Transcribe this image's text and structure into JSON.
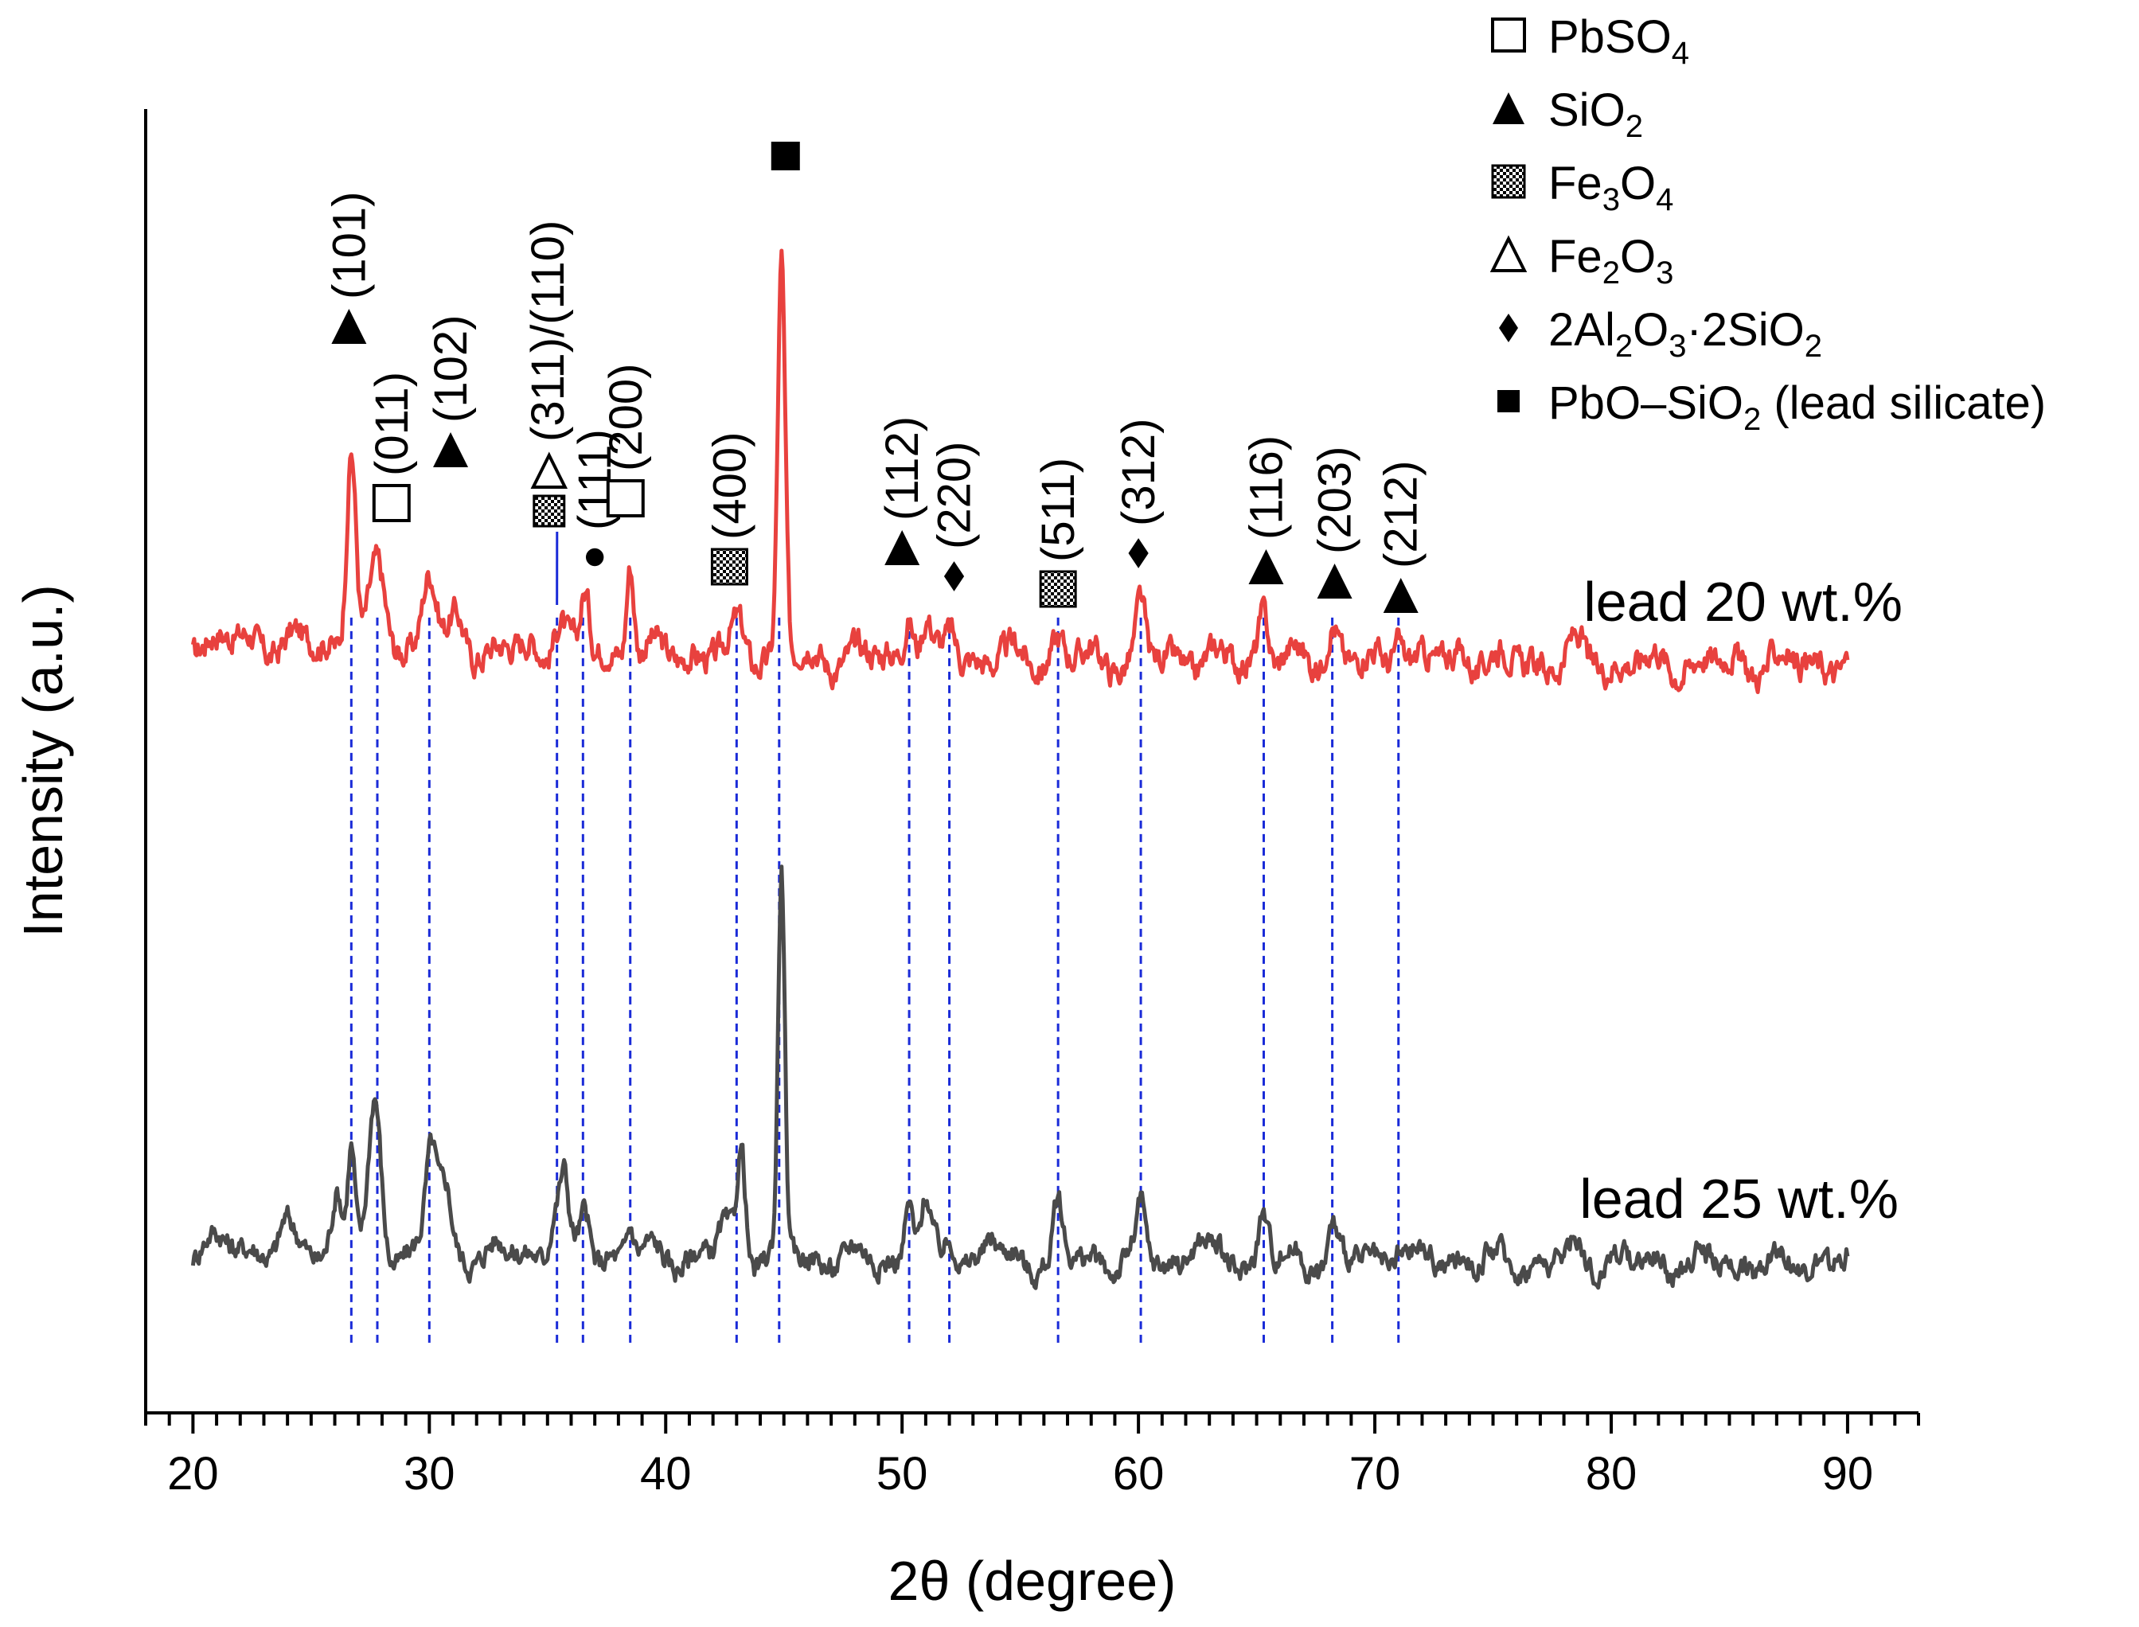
{
  "chart_data": {
    "type": "line",
    "title": "",
    "xlabel": "2θ (degree)",
    "ylabel": "Intensity (a.u.)",
    "xlim": [
      18,
      93
    ],
    "ylim": [
      0,
      100
    ],
    "xticks": [
      20,
      30,
      40,
      50,
      60,
      70,
      80,
      90
    ],
    "xtick_labels": [
      "20",
      "30",
      "40",
      "50",
      "60",
      "70",
      "80",
      "90"
    ],
    "grid": false,
    "legend_position": "top-right",
    "legend": [
      {
        "symbol": "open-square",
        "label": "PbSO",
        "sub": "4",
        "rest": ""
      },
      {
        "symbol": "filled-triangle",
        "label": "SiO",
        "sub": "2",
        "rest": ""
      },
      {
        "symbol": "checker-square",
        "label": "Fe",
        "sub": "3",
        "rest": "O",
        "sub2": "4"
      },
      {
        "symbol": "open-triangle",
        "label": "Fe",
        "sub": "2",
        "rest": "O",
        "sub2": "3"
      },
      {
        "symbol": "diamond",
        "label": "2Al",
        "sub": "2",
        "rest": "O",
        "sub2": "3",
        "rest2": "·2SiO",
        "sub3": "2"
      },
      {
        "symbol": "small-filled-square",
        "label": "PbO–SiO",
        "sub": "2",
        "rest": " (lead silicate)"
      }
    ],
    "series": [
      {
        "name": "lead 20 wt.%",
        "color": "#e8413e",
        "baseline": 58,
        "noise": 1.2,
        "peaks": [
          [
            26.7,
            15.5,
            0.28
          ],
          [
            27.8,
            5.5,
            0.45
          ],
          [
            30.0,
            6.0,
            0.4
          ],
          [
            31.2,
            2.0,
            0.4
          ],
          [
            35.5,
            3.0,
            0.35
          ],
          [
            36.6,
            4.0,
            0.25
          ],
          [
            38.5,
            7.5,
            0.22
          ],
          [
            43.1,
            2.0,
            0.35
          ],
          [
            44.9,
            30.0,
            0.22
          ],
          [
            50.3,
            3.5,
            0.3
          ],
          [
            51.0,
            2.5,
            0.3
          ],
          [
            52.1,
            2.0,
            0.3
          ],
          [
            56.6,
            1.5,
            0.35
          ],
          [
            60.1,
            4.0,
            0.25
          ],
          [
            65.3,
            4.0,
            0.3
          ],
          [
            68.2,
            3.0,
            0.35
          ],
          [
            71.0,
            2.5,
            0.3
          ],
          [
            73.8,
            1.0,
            0.4
          ],
          [
            78.5,
            1.0,
            0.4
          ]
        ]
      },
      {
        "name": "lead 25 wt.%",
        "color": "#4a4a4a",
        "baseline": 12,
        "noise": 1.0,
        "peaks": [
          [
            23.9,
            1.5,
            0.3
          ],
          [
            26.1,
            4.5,
            0.3
          ],
          [
            26.7,
            8.0,
            0.22
          ],
          [
            27.7,
            11.0,
            0.35
          ],
          [
            30.1,
            8.0,
            0.35
          ],
          [
            30.7,
            4.5,
            0.3
          ],
          [
            35.3,
            3.5,
            0.3
          ],
          [
            35.7,
            5.5,
            0.25
          ],
          [
            36.6,
            3.0,
            0.25
          ],
          [
            38.5,
            2.5,
            0.22
          ],
          [
            42.5,
            2.0,
            0.4
          ],
          [
            43.2,
            8.5,
            0.25
          ],
          [
            44.9,
            29.0,
            0.2
          ],
          [
            50.3,
            4.5,
            0.25
          ],
          [
            51.0,
            4.0,
            0.3
          ],
          [
            52.1,
            2.0,
            0.3
          ],
          [
            53.8,
            1.5,
            0.3
          ],
          [
            56.6,
            4.0,
            0.25
          ],
          [
            60.1,
            3.5,
            0.25
          ],
          [
            62.5,
            1.5,
            0.5
          ],
          [
            65.3,
            3.5,
            0.3
          ],
          [
            68.2,
            2.5,
            0.3
          ],
          [
            71.0,
            1.5,
            0.3
          ],
          [
            73.8,
            1.0,
            0.3
          ],
          [
            78.5,
            1.0,
            0.4
          ],
          [
            80.0,
            1.0,
            0.3
          ]
        ]
      }
    ],
    "reference_lines": [
      26.7,
      27.8,
      30.0,
      35.4,
      36.5,
      38.5,
      43.0,
      44.8,
      50.3,
      52.0,
      56.6,
      60.1,
      65.3,
      68.2,
      71.0
    ],
    "annotations": [
      {
        "text": "(101)",
        "marker": "filled-triangle",
        "x": 26.6
      },
      {
        "text": "(011)",
        "marker": "open-square",
        "x": 28.4
      },
      {
        "text": "(102)",
        "marker": "filled-triangle",
        "x": 30.9
      },
      {
        "text": "(311)/(110)",
        "marker": "checker-square+open-triangle",
        "x": 35.0
      },
      {
        "text": "(111)",
        "marker": "dot",
        "x": 37.0
      },
      {
        "text": "(200)",
        "marker": "open-square",
        "x": 38.3
      },
      {
        "text": "(400)",
        "marker": "checker-square",
        "x": 42.7
      },
      {
        "text": "",
        "marker": "filled-square",
        "x": 44.8
      },
      {
        "text": "(112)",
        "marker": "filled-triangle",
        "x": 50.0
      },
      {
        "text": "(220)",
        "marker": "diamond",
        "x": 52.2
      },
      {
        "text": "(511)",
        "marker": "checker-square",
        "x": 56.6
      },
      {
        "text": "(312)",
        "marker": "diamond",
        "x": 60.0
      },
      {
        "text": "(116)",
        "marker": "filled-triangle",
        "x": 65.4
      },
      {
        "text": "(203)",
        "marker": "filled-triangle",
        "x": 68.3
      },
      {
        "text": "(212)",
        "marker": "filled-triangle",
        "x": 71.1
      }
    ]
  }
}
